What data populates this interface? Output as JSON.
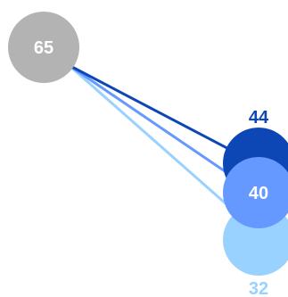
{
  "chart_data": {
    "type": "slope",
    "source": {
      "value": 65,
      "color": "#b3b3b3"
    },
    "targets": [
      {
        "value": 32,
        "color": "#99d1ff",
        "label_position": "below"
      },
      {
        "value": 44,
        "color": "#0d47b5",
        "label_position": "above"
      },
      {
        "value": 40,
        "color": "#6699ff",
        "label_position": "inside"
      }
    ],
    "label_text_color": "#ffffff"
  }
}
